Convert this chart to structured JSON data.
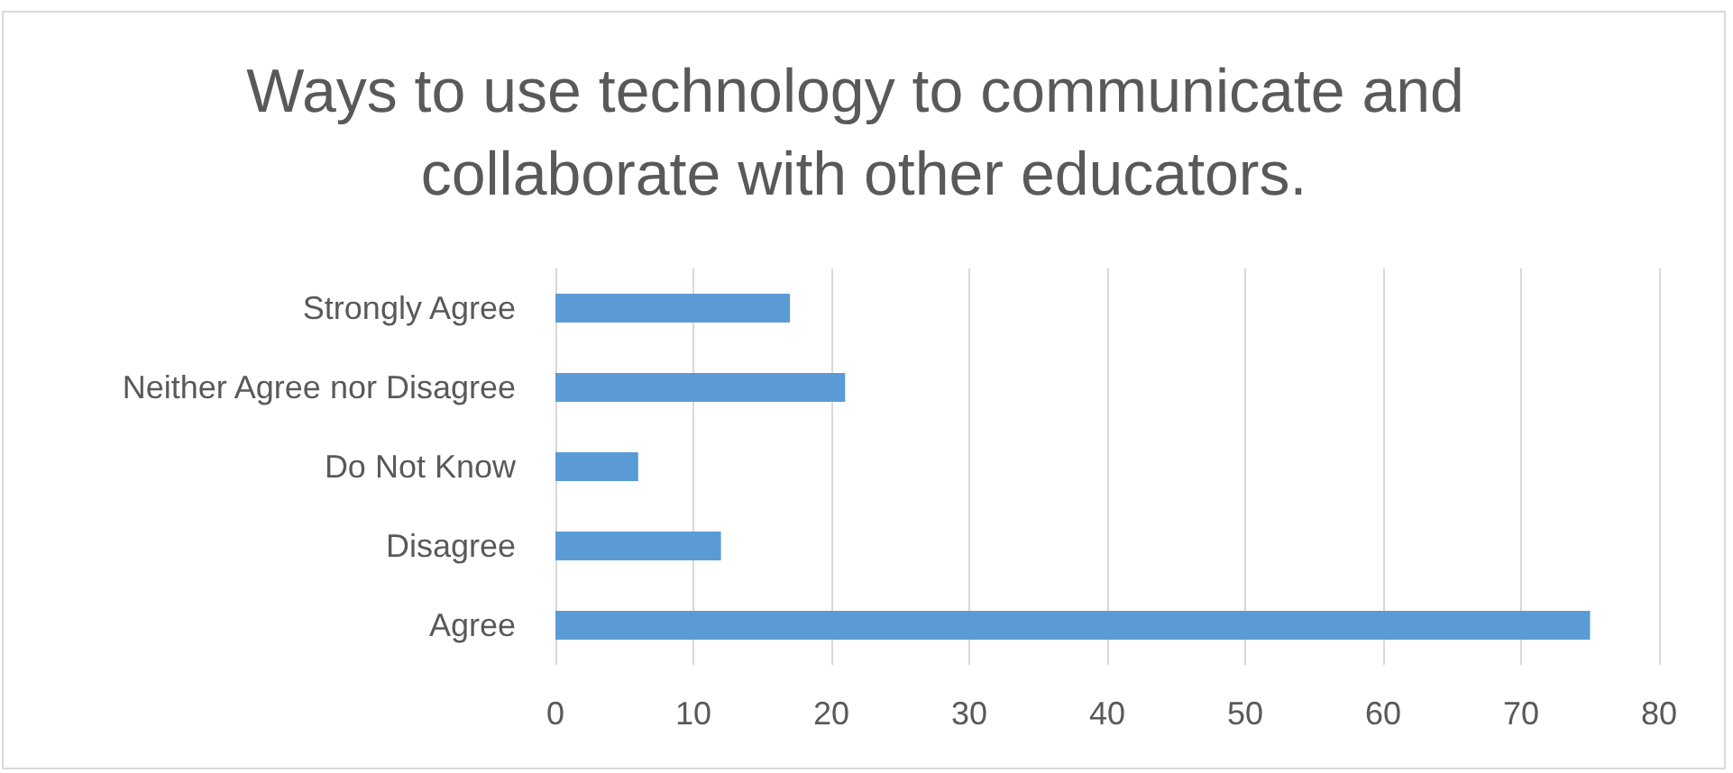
{
  "chart_data": {
    "type": "bar",
    "orientation": "horizontal",
    "title": "Ways to use technology to communicate and collaborate with other educators.",
    "categories": [
      "Strongly Agree",
      "Neither Agree nor Disagree",
      "Do Not Know",
      "Disagree",
      "Agree"
    ],
    "values": [
      17,
      21,
      6,
      12,
      75
    ],
    "color": "#5b9bd5",
    "xlim": [
      0,
      80
    ],
    "xticks": [
      0,
      10,
      20,
      30,
      40,
      50,
      60,
      70,
      80
    ],
    "grid": "x"
  }
}
